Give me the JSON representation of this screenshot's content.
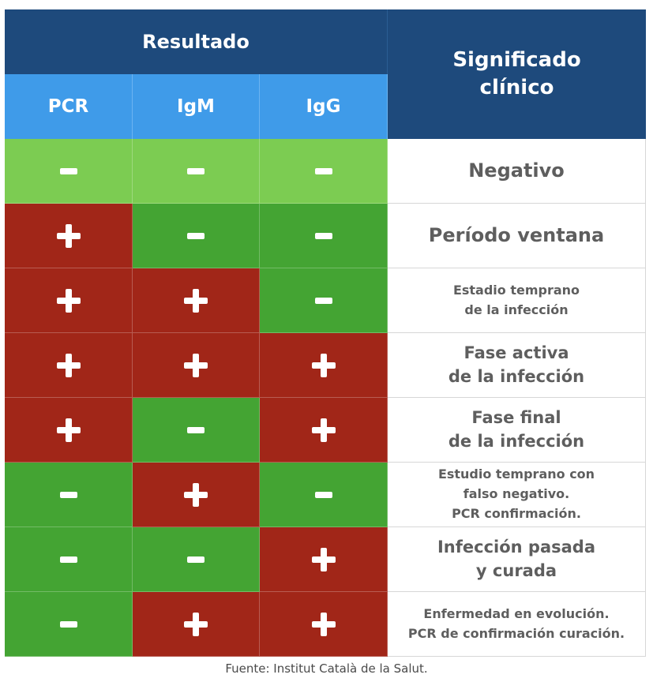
{
  "header": {
    "resultado": "Resultado",
    "significado_line1": "Significado",
    "significado_line2": "clínico",
    "columns": [
      "PCR",
      "IgM",
      "IgG"
    ]
  },
  "rows": [
    {
      "pcr": "-",
      "igm": "-",
      "igg": "-",
      "meaning": [
        "Negativo"
      ]
    },
    {
      "pcr": "+",
      "igm": "-",
      "igg": "-",
      "meaning": [
        "Período ventana"
      ]
    },
    {
      "pcr": "+",
      "igm": "+",
      "igg": "-",
      "meaning": [
        "Estadio temprano",
        "de la infección"
      ]
    },
    {
      "pcr": "+",
      "igm": "+",
      "igg": "+",
      "meaning": [
        "Fase activa",
        "de la infección"
      ]
    },
    {
      "pcr": "+",
      "igm": "-",
      "igg": "+",
      "meaning": [
        "Fase final",
        "de la infección"
      ]
    },
    {
      "pcr": "-",
      "igm": "+",
      "igg": "-",
      "meaning": [
        "Estudio temprano con",
        "falso negativo.",
        "PCR confirmación."
      ]
    },
    {
      "pcr": "-",
      "igm": "-",
      "igg": "+",
      "meaning": [
        "Infección pasada",
        "y curada"
      ]
    },
    {
      "pcr": "-",
      "igm": "+",
      "igg": "+",
      "meaning": [
        "Enfermedad en evolución.",
        "PCR de confirmación curación."
      ]
    }
  ],
  "source": "Fuente: Institut Català de la Salut.",
  "colors": {
    "header_dark": "#1e4a7c",
    "header_light": "#3f9be9",
    "positive_red": "#a12618",
    "negative_green": "#44a433",
    "negative_light_green": "#7ccc52"
  }
}
